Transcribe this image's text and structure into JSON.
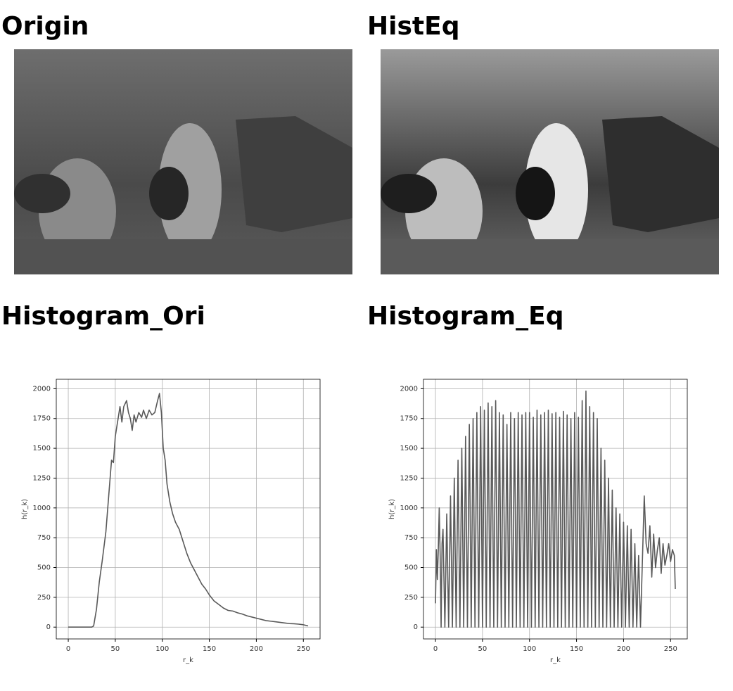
{
  "images": {
    "origin_title": "Origin",
    "histeq_title": "HistEq"
  },
  "chart_data": [
    {
      "type": "line",
      "title": "Histogram_Ori",
      "xlabel": "r_k",
      "ylabel": "h(r_k)",
      "grid": true,
      "xlim": [
        -12.75,
        267.75
      ],
      "ylim": [
        -99,
        2079
      ],
      "xticks": [
        0,
        50,
        100,
        150,
        200,
        250
      ],
      "yticks": [
        0,
        250,
        500,
        750,
        1000,
        1250,
        1500,
        1750,
        2000
      ],
      "color": "#595959",
      "x": [
        0,
        5,
        10,
        15,
        20,
        25,
        27,
        30,
        33,
        36,
        40,
        43,
        46,
        48,
        50,
        53,
        55,
        57,
        59,
        62,
        64,
        66,
        68,
        70,
        72,
        75,
        78,
        80,
        83,
        86,
        89,
        92,
        95,
        97,
        99,
        101,
        103,
        105,
        108,
        111,
        114,
        118,
        122,
        126,
        130,
        134,
        138,
        142,
        146,
        150,
        155,
        160,
        165,
        170,
        175,
        180,
        185,
        190,
        195,
        200,
        205,
        210,
        215,
        220,
        225,
        230,
        235,
        240,
        245,
        250,
        255
      ],
      "values": [
        0,
        0,
        0,
        0,
        0,
        0,
        10,
        150,
        380,
        550,
        800,
        1100,
        1400,
        1380,
        1600,
        1750,
        1850,
        1720,
        1850,
        1900,
        1800,
        1750,
        1650,
        1780,
        1720,
        1800,
        1760,
        1820,
        1750,
        1820,
        1780,
        1800,
        1900,
        1960,
        1800,
        1500,
        1400,
        1200,
        1050,
        950,
        880,
        820,
        720,
        620,
        540,
        480,
        420,
        360,
        320,
        270,
        220,
        190,
        160,
        140,
        135,
        120,
        110,
        95,
        85,
        75,
        65,
        55,
        50,
        45,
        40,
        35,
        30,
        28,
        25,
        20,
        10
      ]
    },
    {
      "type": "line",
      "title": "Histogram_Eq",
      "xlabel": "r_k",
      "ylabel": "h(r_k)",
      "grid": true,
      "xlim": [
        -12.75,
        267.75
      ],
      "ylim": [
        -99,
        2079
      ],
      "xticks": [
        0,
        50,
        100,
        150,
        200,
        250
      ],
      "yticks": [
        0,
        250,
        500,
        750,
        1000,
        1250,
        1500,
        1750,
        2000
      ],
      "color": "#595959",
      "x": [
        0,
        1,
        2,
        3,
        4,
        5,
        6,
        7,
        8,
        10,
        12,
        14,
        16,
        18,
        20,
        22,
        24,
        26,
        28,
        30,
        32,
        34,
        36,
        38,
        40,
        42,
        44,
        46,
        48,
        50,
        52,
        54,
        56,
        58,
        60,
        62,
        64,
        66,
        68,
        70,
        72,
        74,
        76,
        78,
        80,
        82,
        84,
        86,
        88,
        90,
        92,
        94,
        96,
        98,
        100,
        102,
        104,
        106,
        108,
        110,
        112,
        114,
        116,
        118,
        120,
        122,
        124,
        126,
        128,
        130,
        132,
        134,
        136,
        138,
        140,
        142,
        144,
        146,
        148,
        150,
        152,
        154,
        156,
        158,
        160,
        162,
        164,
        166,
        168,
        170,
        172,
        174,
        176,
        178,
        180,
        182,
        184,
        186,
        188,
        190,
        192,
        194,
        196,
        198,
        200,
        202,
        204,
        206,
        208,
        210,
        212,
        214,
        216,
        218,
        222,
        224,
        226,
        228,
        230,
        232,
        234,
        236,
        238,
        240,
        242,
        244,
        246,
        248,
        250,
        252,
        254,
        255
      ],
      "values": [
        200,
        650,
        400,
        650,
        1000,
        600,
        0,
        700,
        820,
        0,
        950,
        0,
        1100,
        0,
        1250,
        0,
        1400,
        0,
        1500,
        0,
        1600,
        0,
        1700,
        0,
        1750,
        0,
        1800,
        0,
        1850,
        0,
        1820,
        0,
        1880,
        0,
        1850,
        0,
        1900,
        0,
        1800,
        0,
        1780,
        0,
        1700,
        0,
        1800,
        0,
        1750,
        0,
        1800,
        0,
        1780,
        0,
        1800,
        0,
        1800,
        0,
        1760,
        0,
        1820,
        0,
        1780,
        0,
        1800,
        0,
        1820,
        0,
        1790,
        0,
        1800,
        0,
        1760,
        0,
        1810,
        0,
        1780,
        0,
        1750,
        0,
        1800,
        0,
        1760,
        0,
        1900,
        0,
        1980,
        0,
        1850,
        0,
        1800,
        0,
        1750,
        0,
        1500,
        0,
        1400,
        0,
        1250,
        0,
        1150,
        0,
        1000,
        0,
        950,
        0,
        880,
        0,
        850,
        0,
        820,
        0,
        700,
        0,
        600,
        0,
        1100,
        700,
        620,
        850,
        420,
        780,
        500,
        650,
        750,
        450,
        700,
        520,
        600,
        700,
        550,
        650,
        600,
        320
      ]
    }
  ]
}
